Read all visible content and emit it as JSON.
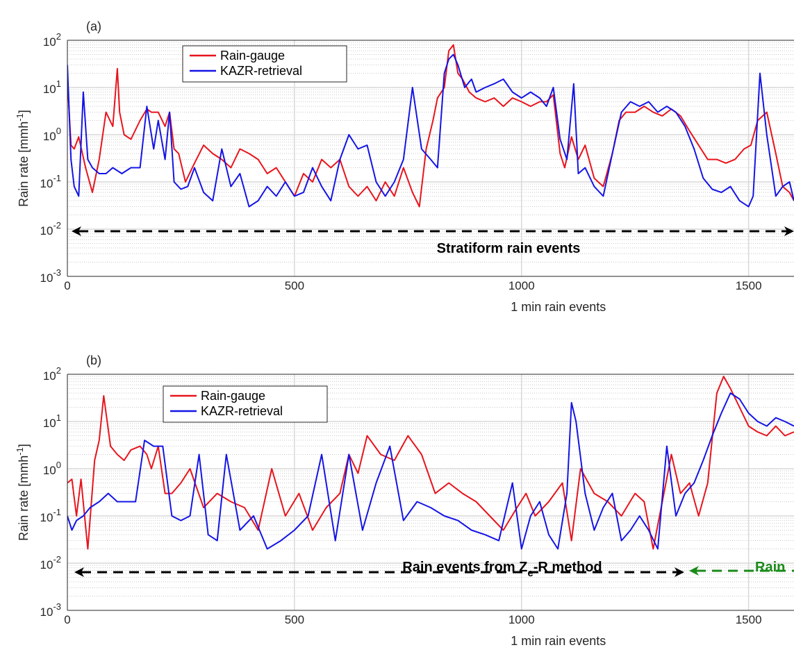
{
  "chart_data": [
    {
      "type": "line",
      "panel_label": "(a)",
      "xlabel": "1 min rain events",
      "ylabel_main": "Rain rate [mmh",
      "ylabel_sup": "-1",
      "ylabel_end": "]",
      "x_ticks": [
        "0",
        "500",
        "1000",
        "1500"
      ],
      "y_ticks": [
        {
          "base": "10",
          "exp": "-3"
        },
        {
          "base": "10",
          "exp": "-2"
        },
        {
          "base": "10",
          "exp": "-1"
        },
        {
          "base": "10",
          "exp": "0"
        },
        {
          "base": "10",
          "exp": "1"
        },
        {
          "base": "10",
          "exp": "2"
        }
      ],
      "x_range": [
        0,
        1600
      ],
      "y_scale": "log",
      "y_range": [
        0.001,
        100
      ],
      "grid": true,
      "legend_position": "top-left",
      "series": [
        {
          "name": "Rain-gauge",
          "color": "#e8141c",
          "x": [
            0,
            8,
            15,
            25,
            40,
            55,
            70,
            85,
            100,
            110,
            115,
            125,
            140,
            160,
            175,
            185,
            200,
            215,
            225,
            235,
            245,
            260,
            280,
            300,
            320,
            340,
            360,
            380,
            400,
            420,
            440,
            460,
            480,
            500,
            520,
            540,
            560,
            580,
            600,
            620,
            640,
            660,
            680,
            700,
            720,
            740,
            760,
            775,
            790,
            805,
            815,
            830,
            840,
            850,
            860,
            870,
            885,
            900,
            920,
            940,
            960,
            980,
            1000,
            1020,
            1040,
            1055,
            1070,
            1085,
            1095,
            1110,
            1125,
            1140,
            1160,
            1180,
            1200,
            1215,
            1230,
            1250,
            1270,
            1290,
            1310,
            1330,
            1350,
            1370,
            1390,
            1410,
            1430,
            1450,
            1470,
            1490,
            1505,
            1520,
            1540,
            1560,
            1575,
            1590,
            1600
          ],
          "y": [
            15,
            0.6,
            0.5,
            0.9,
            0.2,
            0.06,
            0.3,
            3,
            1.5,
            25,
            3,
            1,
            0.8,
            2,
            3.5,
            3,
            3,
            1.5,
            3,
            0.5,
            0.4,
            0.1,
            0.25,
            0.6,
            0.4,
            0.3,
            0.2,
            0.5,
            0.4,
            0.3,
            0.15,
            0.2,
            0.1,
            0.05,
            0.15,
            0.1,
            0.3,
            0.2,
            0.3,
            0.08,
            0.05,
            0.08,
            0.04,
            0.1,
            0.05,
            0.2,
            0.06,
            0.03,
            0.5,
            2,
            6,
            10,
            60,
            80,
            20,
            15,
            8,
            6,
            5,
            6,
            4,
            6,
            5,
            4,
            5,
            5,
            7,
            0.4,
            0.2,
            0.9,
            0.3,
            0.6,
            0.12,
            0.08,
            0.4,
            2,
            3,
            3,
            4,
            3,
            2.5,
            3.5,
            2.5,
            1.2,
            0.6,
            0.3,
            0.3,
            0.25,
            0.3,
            0.5,
            0.6,
            2,
            3,
            0.4,
            0.08,
            0.06,
            0.04
          ]
        },
        {
          "name": "KAZR-retrieval",
          "color": "#1414e6",
          "x": [
            0,
            8,
            15,
            25,
            35,
            45,
            55,
            70,
            85,
            100,
            120,
            140,
            160,
            175,
            190,
            200,
            215,
            225,
            235,
            250,
            265,
            280,
            300,
            320,
            340,
            360,
            380,
            400,
            420,
            440,
            460,
            480,
            500,
            520,
            540,
            560,
            580,
            600,
            620,
            640,
            660,
            680,
            700,
            720,
            740,
            760,
            780,
            800,
            815,
            830,
            840,
            850,
            860,
            875,
            890,
            900,
            920,
            940,
            960,
            980,
            1000,
            1020,
            1040,
            1055,
            1070,
            1085,
            1100,
            1115,
            1125,
            1140,
            1160,
            1180,
            1200,
            1220,
            1240,
            1260,
            1280,
            1300,
            1320,
            1340,
            1360,
            1380,
            1400,
            1420,
            1440,
            1460,
            1480,
            1500,
            1510,
            1525,
            1540,
            1560,
            1575,
            1590,
            1600
          ],
          "y": [
            30,
            0.3,
            0.08,
            0.05,
            8,
            0.3,
            0.2,
            0.15,
            0.15,
            0.2,
            0.15,
            0.2,
            0.2,
            4,
            0.5,
            2,
            0.3,
            3,
            0.1,
            0.07,
            0.08,
            0.2,
            0.06,
            0.04,
            0.5,
            0.08,
            0.15,
            0.03,
            0.04,
            0.08,
            0.05,
            0.1,
            0.05,
            0.06,
            0.2,
            0.08,
            0.04,
            0.3,
            1,
            0.5,
            0.6,
            0.1,
            0.05,
            0.1,
            0.3,
            10,
            0.5,
            0.3,
            0.2,
            20,
            40,
            50,
            30,
            10,
            15,
            8,
            10,
            12,
            15,
            8,
            6,
            8,
            6,
            4,
            10,
            0.8,
            0.3,
            12,
            0.15,
            0.2,
            0.08,
            0.05,
            0.4,
            3,
            5,
            4,
            5,
            3,
            4,
            3,
            1.5,
            0.5,
            0.12,
            0.07,
            0.06,
            0.08,
            0.04,
            0.03,
            0.05,
            20,
            1,
            0.05,
            0.08,
            0.1,
            0.04
          ]
        }
      ],
      "annotations": [
        {
          "text": "Stratiform rain events",
          "color": "#000000"
        }
      ]
    },
    {
      "type": "line",
      "panel_label": "(b)",
      "xlabel": "1 min rain events",
      "ylabel_main": "Rain rate [mmh",
      "ylabel_sup": "-1",
      "ylabel_end": "]",
      "x_ticks": [
        "0",
        "500",
        "1000",
        "1500"
      ],
      "y_ticks": [
        {
          "base": "10",
          "exp": "-3"
        },
        {
          "base": "10",
          "exp": "-2"
        },
        {
          "base": "10",
          "exp": "-1"
        },
        {
          "base": "10",
          "exp": "0"
        },
        {
          "base": "10",
          "exp": "1"
        },
        {
          "base": "10",
          "exp": "2"
        }
      ],
      "x_range": [
        0,
        1600
      ],
      "y_scale": "log",
      "y_range": [
        0.001,
        100
      ],
      "grid": true,
      "legend_position": "top-left",
      "series": [
        {
          "name": "Rain-gauge",
          "color": "#e8141c",
          "x": [
            0,
            10,
            20,
            30,
            45,
            60,
            70,
            80,
            95,
            110,
            125,
            140,
            160,
            175,
            185,
            200,
            215,
            230,
            250,
            270,
            300,
            330,
            360,
            390,
            420,
            450,
            480,
            510,
            540,
            570,
            600,
            620,
            640,
            660,
            690,
            720,
            750,
            780,
            810,
            840,
            870,
            900,
            930,
            960,
            990,
            1010,
            1030,
            1060,
            1090,
            1110,
            1130,
            1160,
            1190,
            1220,
            1250,
            1270,
            1290,
            1310,
            1330,
            1350,
            1370,
            1390,
            1410,
            1430,
            1445,
            1460,
            1480,
            1500,
            1520,
            1540,
            1560,
            1580,
            1600
          ],
          "y": [
            0.5,
            0.6,
            0.1,
            0.6,
            0.02,
            1.5,
            4,
            35,
            3,
            2,
            1.5,
            2.5,
            3,
            2,
            1,
            3,
            0.3,
            0.3,
            0.5,
            1,
            0.15,
            0.3,
            0.2,
            0.15,
            0.05,
            1,
            0.1,
            0.3,
            0.05,
            0.15,
            0.3,
            2,
            0.8,
            5,
            2,
            1.5,
            5,
            2,
            0.3,
            0.5,
            0.3,
            0.2,
            0.1,
            0.05,
            0.15,
            0.3,
            0.1,
            0.2,
            0.5,
            0.03,
            1,
            0.3,
            0.2,
            0.1,
            0.3,
            0.2,
            0.02,
            0.2,
            2,
            0.3,
            0.5,
            0.1,
            0.5,
            40,
            90,
            50,
            20,
            8,
            6,
            5,
            8,
            5,
            6
          ]
        },
        {
          "name": "KAZR-retrieval",
          "color": "#1414e6",
          "x": [
            0,
            10,
            20,
            35,
            50,
            70,
            90,
            110,
            130,
            150,
            170,
            190,
            210,
            230,
            250,
            270,
            290,
            310,
            330,
            350,
            380,
            410,
            440,
            470,
            500,
            530,
            560,
            590,
            620,
            650,
            680,
            710,
            740,
            770,
            800,
            830,
            860,
            890,
            920,
            950,
            980,
            1000,
            1020,
            1040,
            1060,
            1080,
            1100,
            1110,
            1120,
            1140,
            1160,
            1180,
            1200,
            1220,
            1240,
            1260,
            1280,
            1300,
            1320,
            1340,
            1360,
            1380,
            1400,
            1420,
            1440,
            1460,
            1480,
            1500,
            1520,
            1540,
            1560,
            1580,
            1600
          ],
          "y": [
            0.1,
            0.05,
            0.08,
            0.1,
            0.15,
            0.2,
            0.3,
            0.2,
            0.2,
            0.2,
            4,
            3,
            3,
            0.1,
            0.08,
            0.1,
            2,
            0.04,
            0.03,
            2,
            0.05,
            0.1,
            0.02,
            0.03,
            0.05,
            0.1,
            2,
            0.03,
            2,
            0.05,
            0.5,
            3,
            0.08,
            0.2,
            0.15,
            0.1,
            0.08,
            0.05,
            0.04,
            0.03,
            0.5,
            0.02,
            0.1,
            0.2,
            0.04,
            0.02,
            0.3,
            25,
            10,
            0.3,
            0.05,
            0.15,
            0.3,
            0.03,
            0.05,
            0.1,
            0.05,
            0.02,
            3,
            0.1,
            0.3,
            0.5,
            1.5,
            5,
            15,
            40,
            30,
            15,
            10,
            8,
            12,
            10,
            8
          ]
        }
      ],
      "annotations": [
        {
          "text_main": "Rain events from Z",
          "text_sub": "e",
          "text_end": "-R method",
          "color": "#000000"
        },
        {
          "text": "Rain",
          "color": "#1a8a1a"
        }
      ]
    }
  ]
}
